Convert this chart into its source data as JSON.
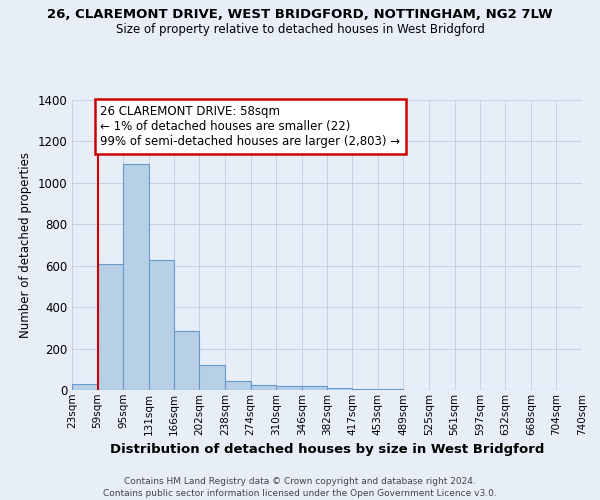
{
  "title1": "26, CLAREMONT DRIVE, WEST BRIDGFORD, NOTTINGHAM, NG2 7LW",
  "title2": "Size of property relative to detached houses in West Bridgford",
  "xlabel": "Distribution of detached houses by size in West Bridgford",
  "ylabel": "Number of detached properties",
  "bin_labels": [
    "23sqm",
    "59sqm",
    "95sqm",
    "131sqm",
    "166sqm",
    "202sqm",
    "238sqm",
    "274sqm",
    "310sqm",
    "346sqm",
    "382sqm",
    "417sqm",
    "453sqm",
    "489sqm",
    "525sqm",
    "561sqm",
    "597sqm",
    "632sqm",
    "668sqm",
    "704sqm",
    "740sqm"
  ],
  "bin_edges": [
    23,
    59,
    95,
    131,
    166,
    202,
    238,
    274,
    310,
    346,
    382,
    417,
    453,
    489,
    525,
    561,
    597,
    632,
    668,
    704,
    740
  ],
  "bar_heights": [
    30,
    610,
    1090,
    630,
    285,
    120,
    45,
    25,
    20,
    20,
    10,
    5,
    3,
    2,
    2,
    1,
    1,
    1,
    0,
    0
  ],
  "bar_color": "#b8cfe8",
  "bar_edge_color": "#6699cc",
  "vline_x": 59,
  "vline_color": "#cc0000",
  "ylim": [
    0,
    1400
  ],
  "yticks": [
    0,
    200,
    400,
    600,
    800,
    1000,
    1200,
    1400
  ],
  "annotation_text": "26 CLAREMONT DRIVE: 58sqm\n← 1% of detached houses are smaller (22)\n99% of semi-detached houses are larger (2,803) →",
  "annotation_box_color": "#ffffff",
  "annotation_box_edge": "#cc0000",
  "footer1": "Contains HM Land Registry data © Crown copyright and database right 2024.",
  "footer2": "Contains public sector information licensed under the Open Government Licence v3.0.",
  "bg_color": "#e8eef8",
  "grid_color": "#c8d0e8"
}
